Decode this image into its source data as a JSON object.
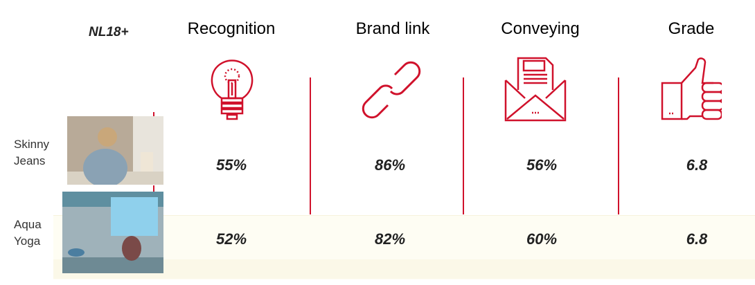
{
  "segment": "NL18+",
  "columns": [
    {
      "label": "Recognition",
      "icon": "lightbulb-icon"
    },
    {
      "label": "Brand link",
      "icon": "chain-link-icon"
    },
    {
      "label": "Conveying",
      "icon": "envelope-letter-icon"
    },
    {
      "label": "Grade",
      "icon": "thumbs-up-icon"
    }
  ],
  "rows": [
    {
      "label_line1": "Skinny",
      "label_line2": "Jeans",
      "values": [
        "55%",
        "86%",
        "56%",
        "6.8"
      ]
    },
    {
      "label_line1": "Aqua",
      "label_line2": "Yoga",
      "values": [
        "52%",
        "82%",
        "60%",
        "6.8"
      ]
    }
  ],
  "colors": {
    "accent": "#d0112b",
    "band": "#fefdf3"
  }
}
